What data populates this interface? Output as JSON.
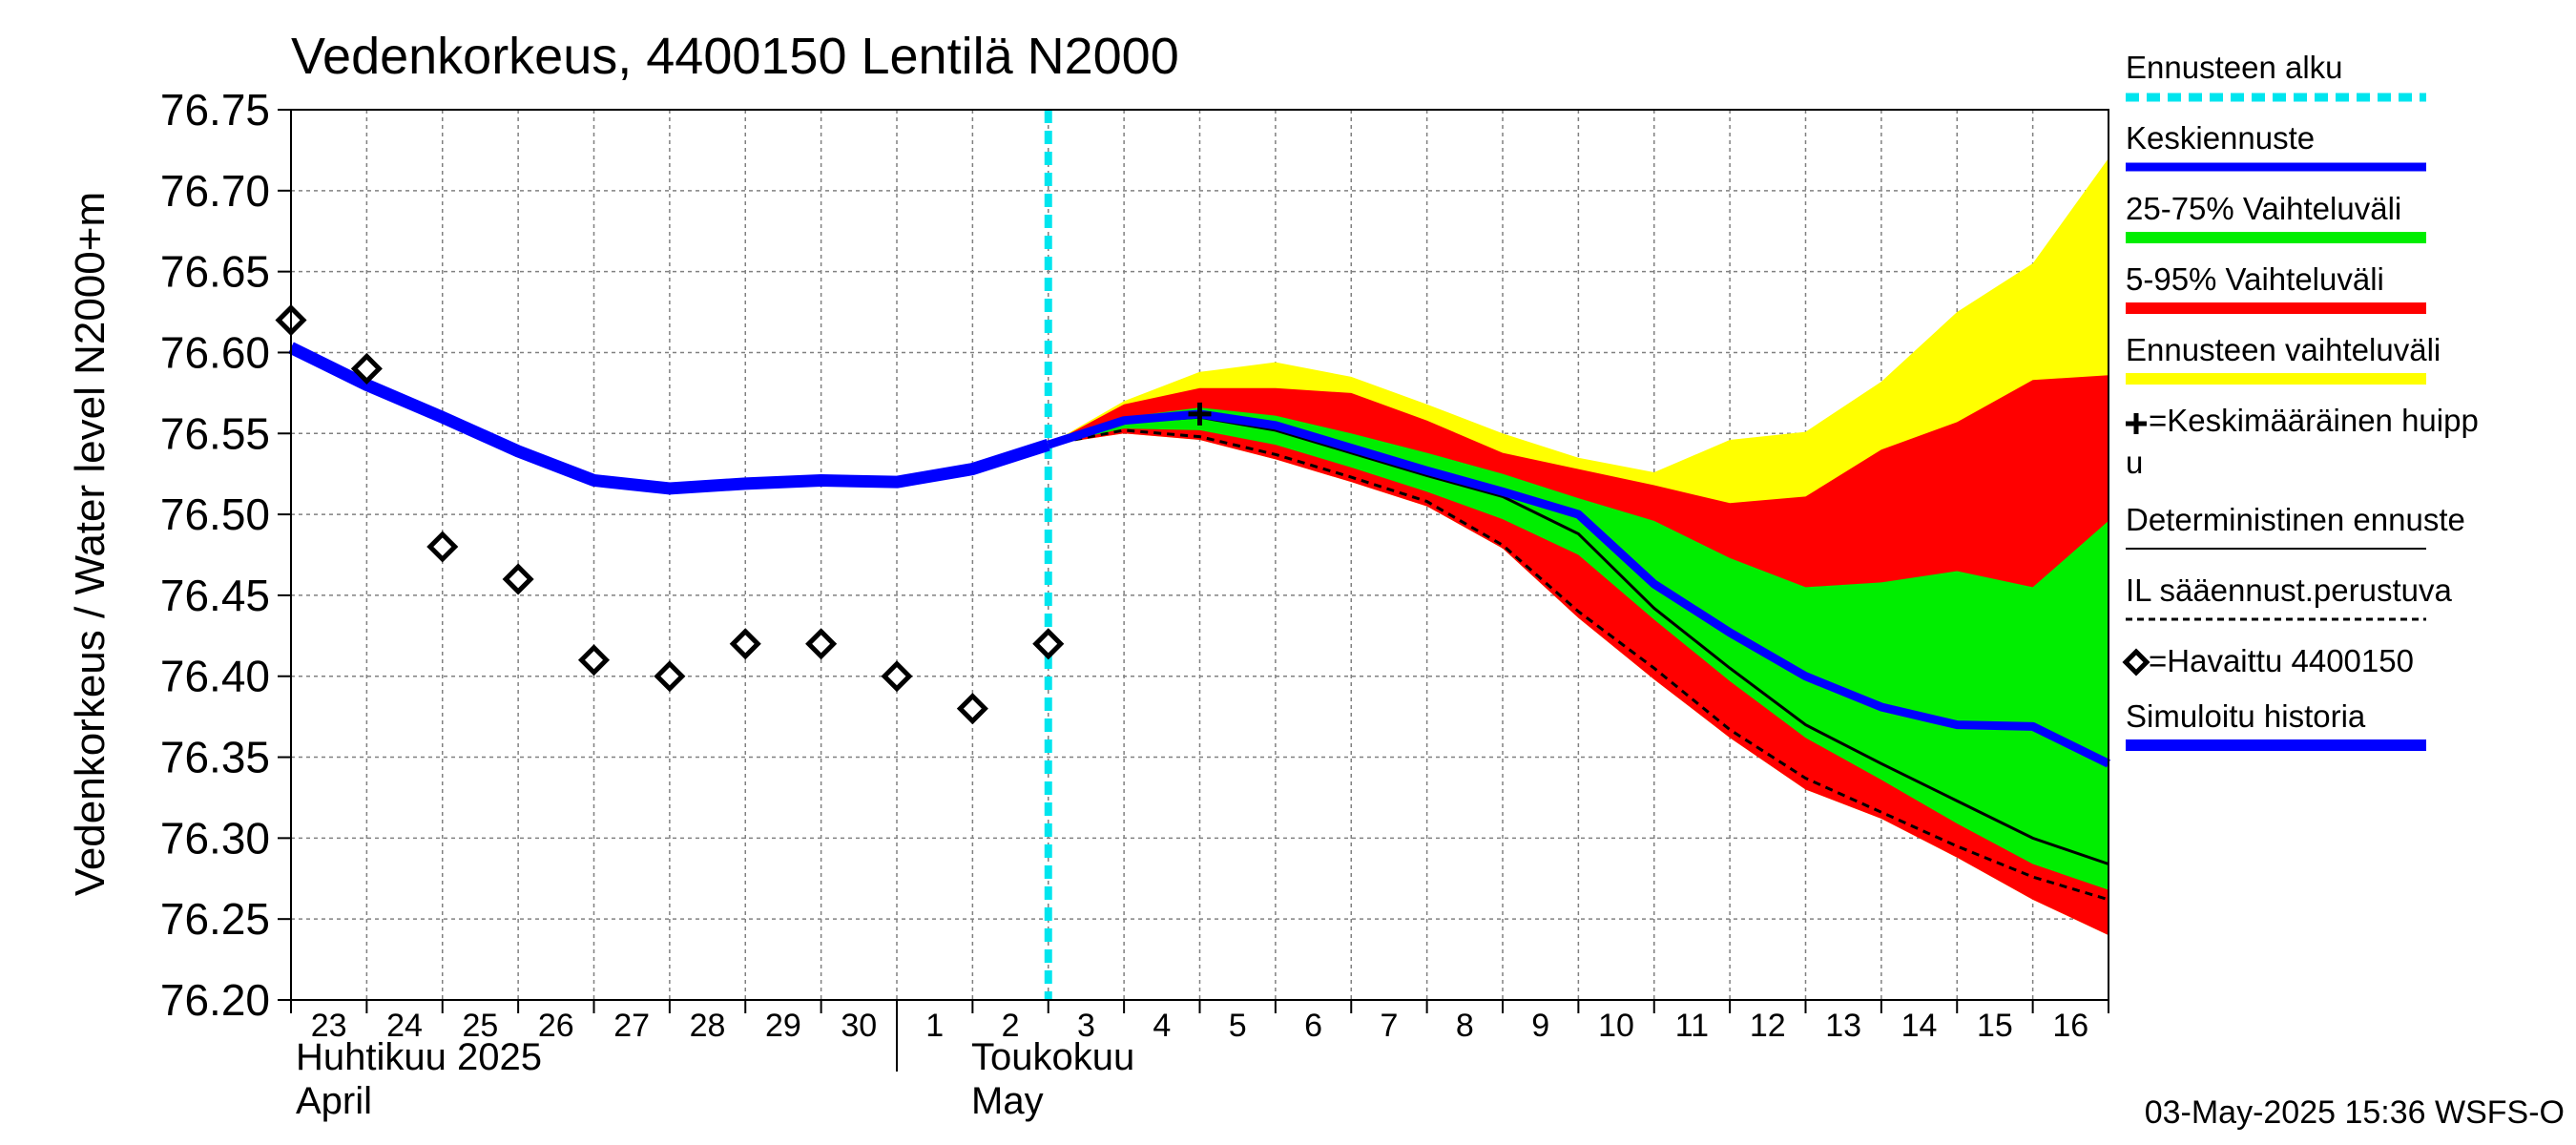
{
  "title": "Vedenkorkeus, 4400150 Lentilä N2000",
  "ylabel": "Vedenkorkeus / Water level    N2000+m",
  "footer": "03-May-2025 15:36 WSFS-O",
  "colors": {
    "forecast_start": "#00e5ee",
    "mean_forecast": "#0000ff",
    "band_25_75": "#00ee00",
    "band_5_95": "#ff0000",
    "band_full": "#ffff00",
    "deterministic": "#000000",
    "weather_based": "#000000",
    "observed": "#000000",
    "simulated": "#0000ff",
    "grid": "#808080"
  },
  "legend": {
    "forecast_start": "Ennusteen alku",
    "mean_forecast": "Keskiennuste",
    "band_25_75": "25-75% Vaihteluväli",
    "band_5_95": "5-95% Vaihteluväli",
    "band_full": "Ennusteen vaihteluväli",
    "mean_peak_line1": "=Keskimääräinen huipp",
    "mean_peak_line2": "u",
    "deterministic": "Deterministinen ennuste",
    "weather_based": "IL sääennust.perustuva",
    "observed": "=Havaittu 4400150",
    "simulated": "Simuloitu historia"
  },
  "months": {
    "april_fi": "Huhtikuu  2025",
    "april_en": "April",
    "may_fi": "Toukokuu",
    "may_en": "May"
  },
  "chart_data": {
    "type": "line",
    "title": "Vedenkorkeus, 4400150 Lentilä N2000",
    "ylabel": "Vedenkorkeus / Water level    N2000+m",
    "xlabel": "",
    "ylim": [
      76.2,
      76.75
    ],
    "yticks": [
      "76.75",
      "76.70",
      "76.65",
      "76.60",
      "76.55",
      "76.50",
      "76.45",
      "76.40",
      "76.35",
      "76.30",
      "76.25",
      "76.20"
    ],
    "xlim": [
      0,
      24
    ],
    "xtick_labels": [
      "23",
      "24",
      "25",
      "26",
      "27",
      "28",
      "29",
      "30",
      "1",
      "2",
      "3",
      "4",
      "5",
      "6",
      "7",
      "8",
      "9",
      "10",
      "11",
      "12",
      "13",
      "14",
      "15",
      "16"
    ],
    "forecast_start_x": 10,
    "mean_peak": {
      "x": 12,
      "y": 76.562
    },
    "simulated_history": {
      "x": [
        0,
        1,
        2,
        3,
        4,
        5,
        6,
        7,
        8,
        9,
        10
      ],
      "y": [
        76.603,
        76.58,
        76.56,
        76.539,
        76.521,
        76.516,
        76.519,
        76.521,
        76.52,
        76.528,
        76.543
      ]
    },
    "observed": {
      "x": [
        0,
        1,
        2,
        3,
        4,
        5,
        6,
        7,
        8,
        9,
        10
      ],
      "y": [
        76.62,
        76.59,
        76.48,
        76.46,
        76.41,
        76.4,
        76.42,
        76.42,
        76.4,
        76.38,
        76.42
      ]
    },
    "forecast_x": [
      10,
      11,
      12,
      13,
      14,
      15,
      16,
      17,
      18,
      19,
      20,
      21,
      22,
      23,
      24
    ],
    "mean_forecast": [
      76.543,
      76.558,
      76.562,
      76.555,
      76.541,
      76.527,
      76.514,
      76.5,
      76.457,
      76.427,
      76.4,
      76.381,
      76.37,
      76.369,
      76.346
    ],
    "deterministic": [
      76.543,
      76.557,
      76.56,
      76.552,
      76.538,
      76.524,
      76.511,
      76.488,
      76.442,
      76.405,
      76.37,
      76.346,
      76.323,
      76.3,
      76.284
    ],
    "weather_based": [
      76.543,
      76.552,
      76.548,
      76.537,
      76.523,
      76.508,
      76.481,
      76.44,
      76.405,
      76.367,
      76.337,
      76.316,
      76.295,
      76.276,
      76.262
    ],
    "band_full": {
      "upper": [
        76.543,
        76.57,
        76.588,
        76.594,
        76.585,
        76.568,
        76.55,
        76.535,
        76.526,
        76.546,
        76.551,
        76.582,
        76.625,
        76.655,
        76.72
      ],
      "lower": [
        76.543,
        76.55,
        76.546,
        76.534,
        76.52,
        76.505,
        76.479,
        76.436,
        76.398,
        76.362,
        76.33,
        76.312,
        76.288,
        76.262,
        76.24
      ]
    },
    "band_5_95": {
      "upper": [
        76.543,
        76.568,
        76.578,
        76.578,
        76.575,
        76.558,
        76.538,
        76.528,
        76.518,
        76.507,
        76.511,
        76.54,
        76.557,
        76.583,
        76.586
      ]
    },
    "band_25_75": {
      "upper": [
        76.543,
        76.56,
        76.566,
        76.561,
        76.55,
        76.538,
        76.525,
        76.51,
        76.496,
        76.473,
        76.455,
        76.458,
        76.465,
        76.455,
        76.496
      ],
      "lower": [
        76.543,
        76.553,
        76.552,
        76.543,
        76.529,
        76.514,
        76.497,
        76.475,
        76.435,
        76.397,
        76.362,
        76.336,
        76.309,
        76.284,
        76.268
      ]
    }
  }
}
